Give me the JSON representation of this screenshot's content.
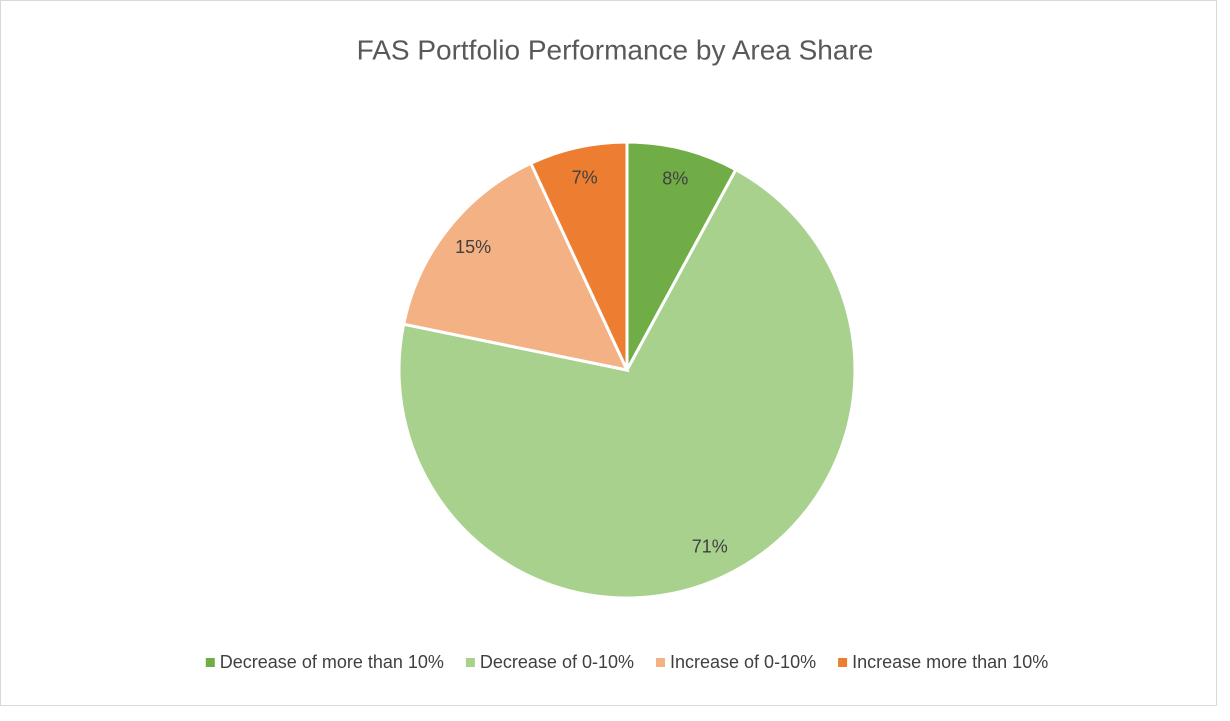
{
  "chart_data": {
    "type": "pie",
    "title": "FAS Portfolio Performance by Area Share",
    "categories": [
      "Decrease of more than 10%",
      "Decrease of 0-10%",
      "Increase of 0-10%",
      "Increase more than 10%"
    ],
    "values": [
      8,
      71,
      15,
      7
    ],
    "value_labels": [
      "8%",
      "71%",
      "15%",
      "7%"
    ],
    "colors": [
      "#70ad47",
      "#a9d18e",
      "#f4b183",
      "#ed7d31"
    ],
    "legend": "bottom"
  }
}
